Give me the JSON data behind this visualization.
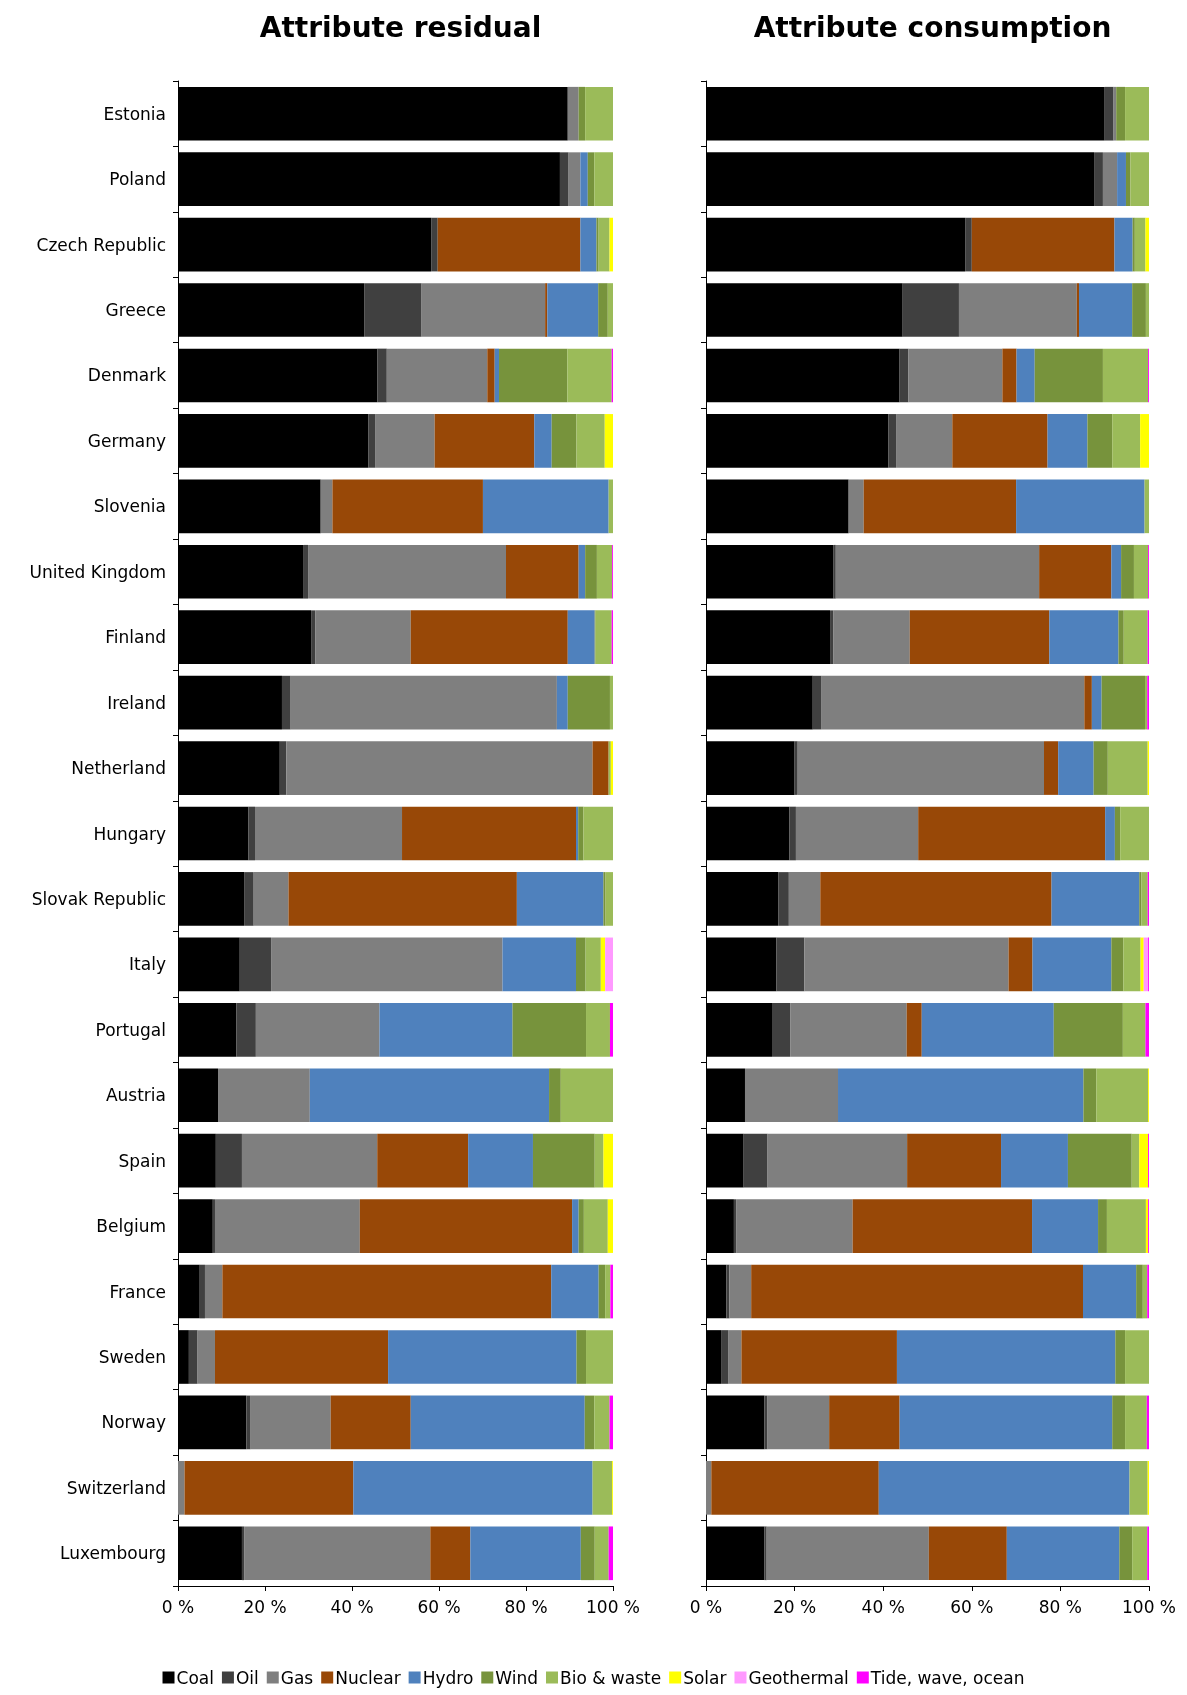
{
  "chart_data": [
    {
      "type": "bar",
      "title": "Attribute residual",
      "orientation": "horizontal",
      "stacked": true,
      "legend": "bottom",
      "grid": false,
      "categories": [
        "Estonia",
        "Poland",
        "Czech Republic",
        "Greece",
        "Denmark",
        "Germany",
        "Slovenia",
        "United Kingdom",
        "Finland",
        "Ireland",
        "Netherland",
        "Hungary",
        "Slovak Republic",
        "Italy",
        "Portugal",
        "Austria",
        "Spain",
        "Belgium",
        "France",
        "Sweden",
        "Norway",
        "Switzerland",
        "Luxembourg"
      ],
      "xlim": [
        0,
        100
      ],
      "xticks": [
        {
          "value": 0,
          "label": "0 %"
        },
        {
          "value": 20,
          "label": "20 %"
        },
        {
          "value": 40,
          "label": "40 %"
        },
        {
          "value": 60,
          "label": "60 %"
        },
        {
          "value": 80,
          "label": "80 %"
        },
        {
          "value": 100,
          "label": "100 %"
        }
      ],
      "series": [
        {
          "name": "Coal",
          "color": "#000000",
          "values": [
            89.6,
            87.8,
            58.2,
            42.8,
            45.8,
            43.8,
            32.8,
            28.9,
            30.6,
            23.9,
            23.4,
            16.2,
            15.2,
            14.2,
            13.4,
            9.2,
            8.7,
            8.0,
            5.0,
            2.5,
            15.7,
            0,
            14.7
          ]
        },
        {
          "name": "Oil",
          "color": "#404040",
          "values": [
            0,
            2,
            1.5,
            13.2,
            2.2,
            1.5,
            0,
            1.0,
            1.0,
            2.0,
            1.5,
            1.5,
            2.2,
            7.2,
            4.5,
            0,
            6.0,
            0.5,
            1.2,
            2.0,
            1.0,
            0,
            0.5
          ]
        },
        {
          "name": "Gas",
          "color": "#7f7f7f",
          "values": [
            2.5,
            2.7,
            0,
            28.4,
            23.1,
            13.7,
            2.7,
            45.5,
            21.9,
            61.2,
            70.4,
            33.8,
            8.0,
            53.2,
            28.4,
            21.1,
            31.1,
            33.3,
            4.0,
            4.0,
            18.4,
            1.5,
            42.8
          ]
        },
        {
          "name": "Nuclear",
          "color": "#984807",
          "values": [
            0,
            0,
            32.8,
            0.5,
            1.7,
            22.9,
            34.6,
            16.7,
            36.1,
            0,
            3.7,
            40.0,
            52.5,
            0,
            0,
            0,
            20.9,
            48.8,
            75.6,
            39.8,
            18.4,
            38.8,
            9.2
          ]
        },
        {
          "name": "Hydro",
          "color": "#4f81bd",
          "values": [
            0,
            1.7,
            3.7,
            11.7,
            1.0,
            4.0,
            28.9,
            1.5,
            6.2,
            2.5,
            0,
            0.5,
            19.9,
            16.9,
            30.6,
            55.0,
            14.9,
            1.5,
            10.9,
            43.3,
            40.0,
            55.0,
            25.4
          ]
        },
        {
          "name": "Wind",
          "color": "#77933c",
          "values": [
            1.5,
            1.5,
            0.5,
            2.2,
            15.7,
            5.7,
            0,
            2.7,
            0.2,
            9.7,
            0,
            1.2,
            0.5,
            2.2,
            16.9,
            2.7,
            14.2,
            1.2,
            1.5,
            2.2,
            2.2,
            0,
            3.2
          ]
        },
        {
          "name": "Bio & waste",
          "color": "#9bbb59",
          "values": [
            6.4,
            4.3,
            2.5,
            1.2,
            10.2,
            6.5,
            1.0,
            3.5,
            3.7,
            0.7,
            0.5,
            6.8,
            1.7,
            3.5,
            5.5,
            12.0,
            2.0,
            5.5,
            1.2,
            6.2,
            3.5,
            4.5,
            3.2
          ]
        },
        {
          "name": "Solar",
          "color": "#ffff00",
          "values": [
            0,
            0,
            0.8,
            0,
            0,
            1.9,
            0,
            0,
            0,
            0,
            0.5,
            0,
            0,
            1.0,
            0,
            0,
            2.2,
            1.2,
            0,
            0,
            0,
            0.2,
            0
          ]
        },
        {
          "name": "Geothermal",
          "color": "#ff99ff",
          "values": [
            0,
            0,
            0,
            0,
            0,
            0,
            0,
            0,
            0,
            0,
            0,
            0,
            0,
            1.8,
            0,
            0,
            0,
            0,
            0,
            0,
            0,
            0,
            0
          ]
        },
        {
          "name": "Tide, wave, ocean",
          "color": "#ff00ff",
          "values": [
            0,
            0,
            0,
            0,
            0.3,
            0,
            0,
            0.2,
            0.3,
            0,
            0,
            0,
            0,
            0,
            0.7,
            0,
            0,
            0,
            0.6,
            0,
            0.8,
            0,
            1.0
          ]
        }
      ]
    },
    {
      "type": "bar",
      "title": "Attribute consumption",
      "orientation": "horizontal",
      "stacked": true,
      "grid": false,
      "tick_labels": "x",
      "categories": [
        null,
        null,
        null,
        null,
        null,
        null,
        null,
        null,
        null,
        null,
        null,
        null,
        null,
        null,
        null,
        null,
        null,
        null,
        null,
        null,
        null,
        null,
        null
      ],
      "xlim": [
        0,
        100
      ],
      "xticks": [
        {
          "value": 0,
          "label": "0 %"
        },
        {
          "value": 20,
          "label": "20 %"
        },
        {
          "value": 40,
          "label": "40 %"
        },
        {
          "value": 60,
          "label": "60 %"
        },
        {
          "value": 80,
          "label": "80 %"
        },
        {
          "value": 100,
          "label": "100 %"
        }
      ],
      "series": [
        {
          "color": "#000000",
          "values": [
            90,
            87.6,
            58.5,
            44.4,
            43.7,
            41.2,
            32.2,
            28.8,
            28.0,
            24.1,
            20.0,
            18.8,
            16.3,
            15.9,
            14.9,
            8.8,
            8.5,
            6.3,
            4.6,
            3.4,
            13.2,
            0,
            13.2
          ]
        },
        {
          "color": "#404040",
          "values": [
            2,
            2,
            1.5,
            12.7,
            2,
            1.7,
            0,
            0.5,
            0.7,
            2.0,
            0.7,
            1.5,
            2.4,
            6.3,
            4.1,
            0,
            5.4,
            0.5,
            0.7,
            1.7,
            0.7,
            0,
            0.5
          ]
        },
        {
          "color": "#7f7f7f",
          "values": [
            0.6,
            3.2,
            0,
            26.6,
            21.2,
            12.7,
            3.4,
            45.9,
            17.3,
            59.3,
            55.6,
            27.6,
            7.1,
            46.1,
            26.3,
            21.0,
            31.5,
            26.3,
            4.9,
            2.9,
            13.9,
            1.2,
            36.6
          ]
        },
        {
          "color": "#984807",
          "values": [
            0,
            0,
            32.2,
            0.5,
            3.2,
            21.5,
            34.4,
            16.3,
            31.5,
            1.7,
            3.2,
            42.2,
            52.2,
            5.4,
            3.4,
            0,
            21.2,
            40.5,
            74.9,
            35.1,
            15.9,
            37.8,
            17.6
          ]
        },
        {
          "color": "#4f81bd",
          "values": [
            0,
            2,
            4.1,
            12.0,
            4.1,
            9.0,
            29.0,
            2.2,
            15.6,
            2.2,
            8.0,
            2.2,
            19.8,
            17.8,
            29.8,
            55.4,
            15.1,
            14.9,
            12.0,
            49.3,
            48.0,
            56.6,
            25.4
          ]
        },
        {
          "color": "#77933c",
          "values": [
            2,
            1,
            0.5,
            3.1,
            15.4,
            5.6,
            0,
            2.9,
            1.2,
            9.8,
            3.2,
            1.2,
            0.5,
            2.7,
            15.6,
            2.9,
            14.4,
            2.0,
            1.5,
            2.2,
            2.9,
            0,
            2.9
          ]
        },
        {
          "color": "#9bbb59",
          "values": [
            5.4,
            4.2,
            2.4,
            0.7,
            10.2,
            6.3,
            1.0,
            3.2,
            5.4,
            0.5,
            9.0,
            6.5,
            1.4,
            3.9,
            5.1,
            11.7,
            1.7,
            8.8,
            1.0,
            5.4,
            4.9,
            4.1,
            3.4
          ]
        },
        {
          "color": "#ffff00",
          "values": [
            0,
            0,
            0.8,
            0,
            0,
            2.0,
            0,
            0,
            0,
            0,
            0.3,
            0,
            0,
            0.7,
            0,
            0.2,
            2.0,
            0.5,
            0,
            0,
            0,
            0.3,
            0
          ]
        },
        {
          "color": "#ff99ff",
          "values": [
            0,
            0,
            0,
            0,
            0,
            0,
            0,
            0,
            0,
            0,
            0,
            0,
            0,
            1.0,
            0,
            0,
            0,
            0,
            0,
            0,
            0,
            0,
            0
          ]
        },
        {
          "color": "#ff00ff",
          "values": [
            0,
            0,
            0,
            0,
            0.2,
            0,
            0,
            0.2,
            0.3,
            0.4,
            0,
            0,
            0.3,
            0.2,
            0.8,
            0,
            0.2,
            0.2,
            0.4,
            0,
            0.5,
            0,
            0.4
          ]
        }
      ]
    }
  ]
}
